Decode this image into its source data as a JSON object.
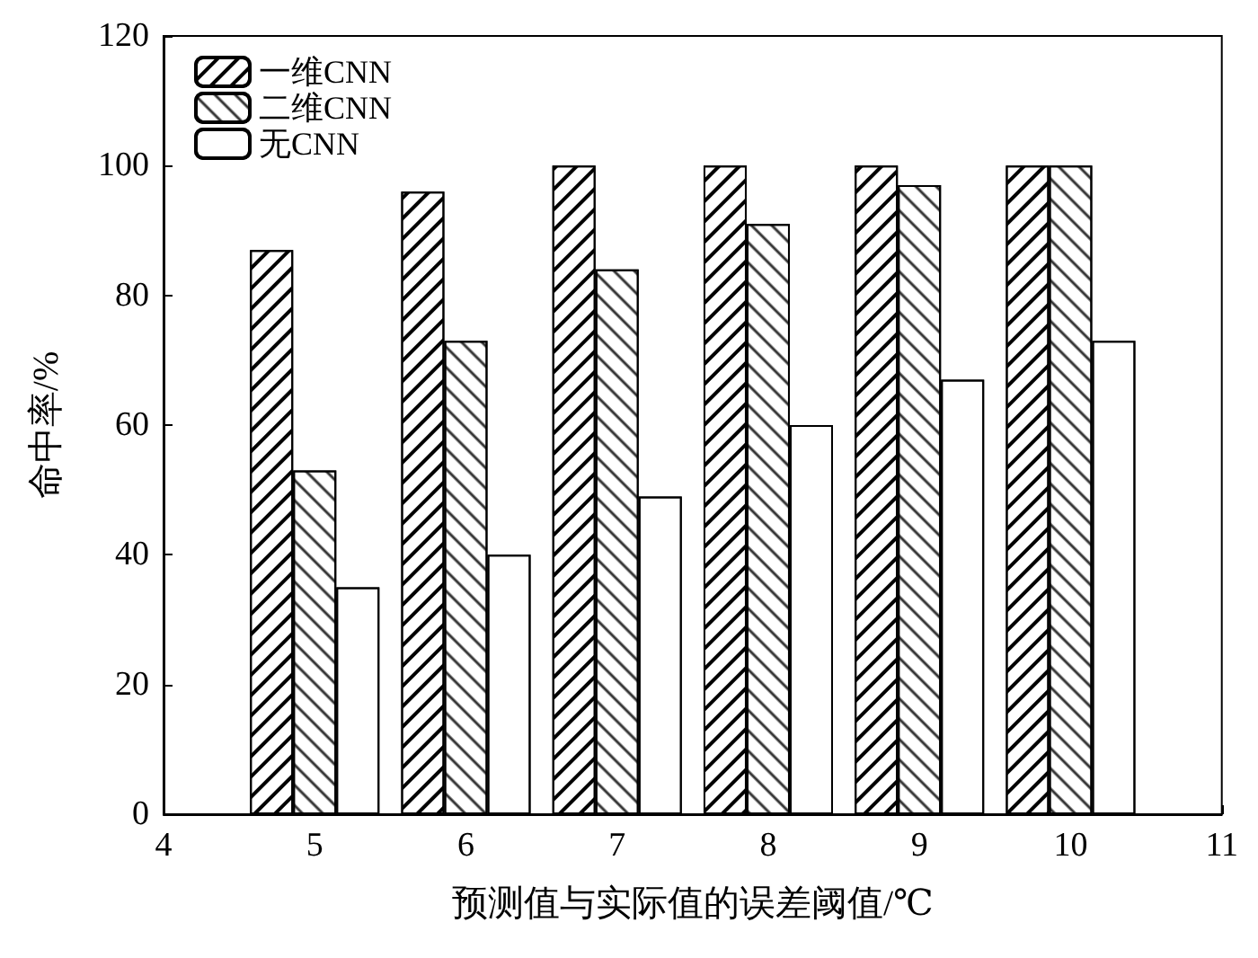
{
  "chart_data": {
    "type": "bar",
    "xlabel": "预测值与实际值的误差阈值/℃",
    "ylabel": "命中率/%",
    "x": [
      5,
      6,
      7,
      8,
      9,
      10
    ],
    "series": [
      {
        "name": "一维CNN",
        "color": "#ffffff",
        "values": [
          87,
          96,
          100,
          100,
          100,
          100
        ]
      },
      {
        "name": "二维CNN",
        "color": "#ffffff",
        "values": [
          53,
          73,
          84,
          91,
          97,
          100
        ]
      },
      {
        "name": "无CNN",
        "color": "#ffffff",
        "values": [
          35,
          40,
          49,
          60,
          67,
          73
        ]
      }
    ],
    "xlim": [
      4,
      11
    ],
    "xticks": [
      4,
      5,
      6,
      7,
      8,
      9,
      10,
      11
    ],
    "ylim": [
      0,
      120
    ],
    "yticks": [
      0,
      20,
      40,
      60,
      80,
      100,
      120
    ],
    "legend": "top left",
    "grid": false
  }
}
